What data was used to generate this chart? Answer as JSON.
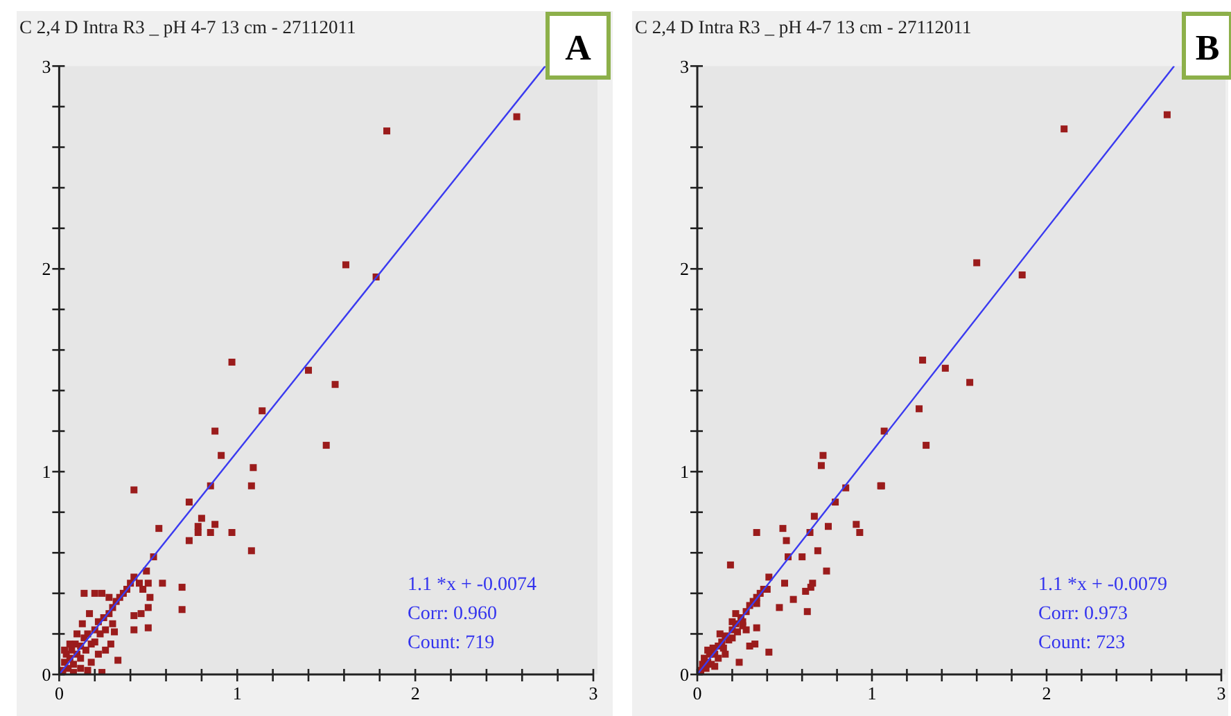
{
  "chart_data": [
    {
      "type": "scatter",
      "title": "C 2,4 D Intra R3 _  pH 4-7 13 cm - 27112011",
      "xlim": [
        0,
        3
      ],
      "ylim": [
        0,
        3
      ],
      "xticks": [
        0,
        {
          "value": 0.2,
          "label": null
        },
        {
          "value": 0.4,
          "label": null
        },
        {
          "value": 0.6,
          "label": null
        },
        {
          "value": 0.8,
          "label": null
        },
        1,
        {
          "value": 1.2,
          "label": null
        },
        {
          "value": 1.4,
          "label": null
        },
        {
          "value": 1.6,
          "label": null
        },
        {
          "value": 1.8,
          "label": null
        },
        2,
        {
          "value": 2.2,
          "label": null
        },
        {
          "value": 2.4,
          "label": null
        },
        {
          "value": 2.6,
          "label": null
        },
        {
          "value": 2.8,
          "label": null
        },
        3
      ],
      "yticks": [
        0,
        {
          "value": 0.2,
          "label": null
        },
        {
          "value": 0.4,
          "label": null
        },
        {
          "value": 0.6,
          "label": null
        },
        {
          "value": 0.8,
          "label": null
        },
        1,
        {
          "value": 1.2,
          "label": null
        },
        {
          "value": 1.4,
          "label": null
        },
        {
          "value": 1.6,
          "label": null
        },
        {
          "value": 1.8,
          "label": null
        },
        2,
        {
          "value": 2.2,
          "label": null
        },
        {
          "value": 2.4,
          "label": null
        },
        {
          "value": 2.6,
          "label": null
        },
        {
          "value": 2.8,
          "label": null
        },
        3
      ],
      "marker": "square",
      "grid": false,
      "series": [
        {
          "color": "#9b1c1c",
          "x": [
            1.78,
            1.84,
            2.57,
            1.61,
            0.97,
            1.4,
            1.55,
            1.14,
            0.875,
            0.91,
            1.09,
            1.5,
            1.08,
            0.85,
            0.42,
            0.73,
            0.8,
            0.78,
            0.875,
            0.78,
            0.85,
            0.97,
            0.56,
            0.73,
            1.08,
            0.53,
            0.49,
            0.42,
            0.58,
            0.5,
            0.69,
            0.69,
            0.51,
            0.5,
            0.5,
            0.42,
            0.42,
            0.46,
            0.33,
            0.24,
            0.14,
            0.31,
            0.29,
            0.16,
            0.02,
            0.03,
            0.05,
            0.04,
            0.06,
            0.08,
            0.07,
            0.1,
            0.09,
            0.12,
            0.12,
            0.14,
            0.15,
            0.16,
            0.18,
            0.2,
            0.2,
            0.22,
            0.23,
            0.25,
            0.26,
            0.28,
            0.3,
            0.32,
            0.34,
            0.36,
            0.24,
            0.28,
            0.2,
            0.17,
            0.13,
            0.1,
            0.06,
            0.03,
            0.18,
            0.22,
            0.26,
            0.08,
            0.12,
            0.3,
            0.38,
            0.4,
            0.45,
            0.47
          ],
          "values": [
            1.96,
            2.68,
            2.75,
            2.02,
            1.54,
            1.5,
            1.43,
            1.3,
            1.2,
            1.08,
            1.02,
            1.13,
            0.93,
            0.93,
            0.91,
            0.85,
            0.77,
            0.73,
            0.74,
            0.7,
            0.7,
            0.7,
            0.72,
            0.66,
            0.61,
            0.58,
            0.51,
            0.48,
            0.45,
            0.45,
            0.43,
            0.32,
            0.38,
            0.33,
            0.23,
            0.22,
            0.29,
            0.3,
            0.07,
            0.01,
            0.4,
            0.21,
            0.15,
            0.02,
            0.02,
            0.06,
            0.03,
            0.1,
            0.08,
            0.05,
            0.12,
            0.1,
            0.15,
            0.08,
            0.14,
            0.18,
            0.12,
            0.2,
            0.15,
            0.22,
            0.16,
            0.26,
            0.2,
            0.28,
            0.22,
            0.3,
            0.33,
            0.36,
            0.38,
            0.4,
            0.4,
            0.38,
            0.4,
            0.3,
            0.25,
            0.2,
            0.15,
            0.12,
            0.06,
            0.1,
            0.12,
            0.01,
            0.03,
            0.25,
            0.42,
            0.45,
            0.45,
            0.42
          ]
        },
        {
          "type": "line",
          "color": "#3a3af0",
          "marker": "none",
          "x": [
            0,
            2.73
          ],
          "values": [
            0,
            3
          ]
        }
      ],
      "annotations": [
        "A",
        "1.1 *x + -0.0074",
        "Corr: 0.960",
        "Count: 719"
      ]
    },
    {
      "type": "scatter",
      "title": "C 2,4 D Intra R3 _  pH 4-7 13 cm - 27112011",
      "xlim": [
        0,
        3
      ],
      "ylim": [
        0,
        3
      ],
      "xticks": [
        0,
        {
          "value": 0.2,
          "label": null
        },
        {
          "value": 0.4,
          "label": null
        },
        {
          "value": 0.6,
          "label": null
        },
        {
          "value": 0.8,
          "label": null
        },
        1,
        {
          "value": 1.2,
          "label": null
        },
        {
          "value": 1.4,
          "label": null
        },
        {
          "value": 1.6,
          "label": null
        },
        {
          "value": 1.8,
          "label": null
        },
        2,
        {
          "value": 2.2,
          "label": null
        },
        {
          "value": 2.4,
          "label": null
        },
        {
          "value": 2.6,
          "label": null
        },
        {
          "value": 2.8,
          "label": null
        },
        3
      ],
      "yticks": [
        0,
        {
          "value": 0.2,
          "label": null
        },
        {
          "value": 0.4,
          "label": null
        },
        {
          "value": 0.6,
          "label": null
        },
        {
          "value": 0.8,
          "label": null
        },
        1,
        {
          "value": 1.2,
          "label": null
        },
        {
          "value": 1.4,
          "label": null
        },
        {
          "value": 1.6,
          "label": null
        },
        {
          "value": 1.8,
          "label": null
        },
        2,
        {
          "value": 2.2,
          "label": null
        },
        {
          "value": 2.4,
          "label": null
        },
        {
          "value": 2.6,
          "label": null
        },
        {
          "value": 2.8,
          "label": null
        },
        3
      ],
      "marker": "square",
      "grid": false,
      "series": [
        {
          "color": "#9b1c1c",
          "x": [
            2.1,
            2.69,
            1.6,
            1.86,
            1.29,
            1.42,
            1.56,
            1.27,
            1.07,
            1.31,
            0.72,
            0.71,
            1.05,
            1.055,
            0.85,
            0.79,
            0.67,
            0.34,
            0.49,
            0.645,
            0.75,
            0.91,
            0.93,
            0.51,
            0.52,
            0.6,
            0.69,
            0.74,
            0.19,
            0.41,
            0.5,
            0.66,
            0.65,
            0.62,
            0.55,
            0.47,
            0.63,
            0.41,
            0.24,
            0.34,
            0.3,
            0.33,
            0.02,
            0.03,
            0.05,
            0.04,
            0.06,
            0.08,
            0.07,
            0.1,
            0.09,
            0.12,
            0.12,
            0.14,
            0.15,
            0.16,
            0.18,
            0.2,
            0.2,
            0.22,
            0.23,
            0.25,
            0.26,
            0.28,
            0.3,
            0.32,
            0.34,
            0.36,
            0.38,
            0.4,
            0.22,
            0.26,
            0.13,
            0.1,
            0.06,
            0.16,
            0.2,
            0.28,
            0.34
          ],
          "values": [
            2.69,
            2.76,
            2.03,
            1.97,
            1.55,
            1.51,
            1.44,
            1.31,
            1.2,
            1.13,
            1.08,
            1.03,
            0.93,
            0.93,
            0.92,
            0.85,
            0.78,
            0.7,
            0.72,
            0.7,
            0.73,
            0.74,
            0.7,
            0.66,
            0.58,
            0.58,
            0.61,
            0.51,
            0.54,
            0.48,
            0.45,
            0.45,
            0.43,
            0.41,
            0.37,
            0.33,
            0.31,
            0.11,
            0.06,
            0.23,
            0.14,
            0.15,
            0.02,
            0.05,
            0.03,
            0.08,
            0.06,
            0.05,
            0.1,
            0.1,
            0.13,
            0.08,
            0.14,
            0.16,
            0.13,
            0.19,
            0.17,
            0.22,
            0.18,
            0.25,
            0.21,
            0.28,
            0.24,
            0.31,
            0.34,
            0.36,
            0.38,
            0.4,
            0.42,
            0.42,
            0.3,
            0.26,
            0.2,
            0.04,
            0.12,
            0.1,
            0.26,
            0.22,
            0.35
          ]
        },
        {
          "type": "line",
          "color": "#3a3af0",
          "marker": "none",
          "x": [
            0,
            2.73
          ],
          "values": [
            0,
            3
          ]
        }
      ],
      "annotations": [
        "B",
        "1.1 *x + -0.0079",
        "Corr: 0.973",
        "Count: 723"
      ]
    }
  ]
}
